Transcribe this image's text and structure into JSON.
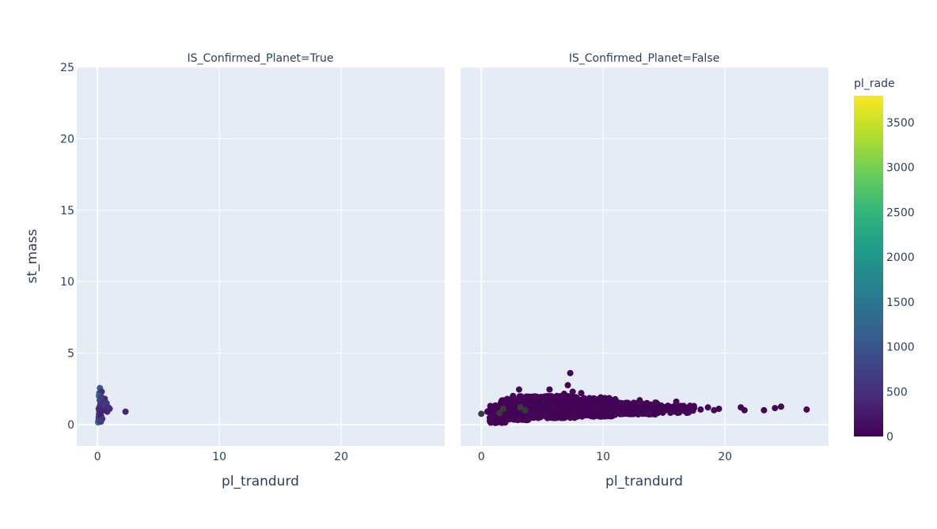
{
  "chart_data": {
    "type": "scatter",
    "colorscale": "Viridis",
    "colors": {
      "plot_bg": "#e5ecf6",
      "grid": "#ffffff",
      "text": "#2a3f5f",
      "dense_point": "#3a3a3a",
      "viridis": [
        "#440154",
        "#482878",
        "#3e4989",
        "#31688e",
        "#26828e",
        "#1f9e89",
        "#35b779",
        "#6ece58",
        "#b5de2b",
        "#fde725"
      ]
    },
    "shared_y_axis": true,
    "yaxis": {
      "title": "st_mass",
      "range": [
        -1.5,
        25
      ],
      "ticks": [
        0,
        5,
        10,
        15,
        20,
        25
      ]
    },
    "xaxis": {
      "title": "pl_trandurd",
      "range": [
        -1.7,
        28.5
      ],
      "ticks": [
        0,
        10,
        20
      ]
    },
    "colorbar": {
      "title": "pl_rade",
      "range": [
        0,
        3800
      ],
      "ticks": [
        0,
        500,
        1000,
        1500,
        2000,
        2500,
        3000,
        3500
      ]
    },
    "facets": [
      {
        "title": "IS_Confirmed_Planet=True",
        "points": [
          {
            "x": 0.05,
            "y": 0.15,
            "c": 1500
          },
          {
            "x": 0.08,
            "y": 0.3,
            "c": 900
          },
          {
            "x": 0.1,
            "y": 0.5,
            "c": 700
          },
          {
            "x": 0.12,
            "y": 0.7,
            "c": 600
          },
          {
            "x": 0.15,
            "y": 0.9,
            "c": 500
          },
          {
            "x": 0.1,
            "y": 1.1,
            "c": 450
          },
          {
            "x": 0.2,
            "y": 1.3,
            "c": 400
          },
          {
            "x": 0.25,
            "y": 1.5,
            "c": 600
          },
          {
            "x": 0.18,
            "y": 1.7,
            "c": 800
          },
          {
            "x": 0.22,
            "y": 1.9,
            "c": 900
          },
          {
            "x": 0.15,
            "y": 2.2,
            "c": 1000
          },
          {
            "x": 0.2,
            "y": 2.55,
            "c": 1100
          },
          {
            "x": 0.35,
            "y": 2.3,
            "c": 500
          },
          {
            "x": 0.4,
            "y": 1.6,
            "c": 600
          },
          {
            "x": 0.45,
            "y": 1.2,
            "c": 400
          },
          {
            "x": 0.5,
            "y": 1.4,
            "c": 500
          },
          {
            "x": 0.55,
            "y": 1.0,
            "c": 700
          },
          {
            "x": 0.6,
            "y": 1.8,
            "c": 450
          },
          {
            "x": 0.65,
            "y": 1.3,
            "c": 800
          },
          {
            "x": 0.7,
            "y": 1.1,
            "c": 500
          },
          {
            "x": 0.75,
            "y": 1.5,
            "c": 600
          },
          {
            "x": 0.8,
            "y": 0.9,
            "c": 400
          },
          {
            "x": 0.9,
            "y": 1.2,
            "c": 500
          },
          {
            "x": 1.0,
            "y": 1.1,
            "c": 450
          },
          {
            "x": 0.3,
            "y": 0.6,
            "c": 300
          },
          {
            "x": 0.28,
            "y": 0.2,
            "c": 700
          },
          {
            "x": 0.35,
            "y": 0.95,
            "c": 350
          },
          {
            "x": 0.4,
            "y": 0.4,
            "c": 600
          },
          {
            "x": 0.12,
            "y": 2.0,
            "c": 1300
          },
          {
            "x": 0.3,
            "y": 1.95,
            "c": 700
          },
          {
            "x": 2.3,
            "y": 0.9,
            "c": 400
          }
        ]
      },
      {
        "title": "IS_Confirmed_Planet=False",
        "points": [
          {
            "x": 0.0,
            "y": 0.75,
            "c": 0,
            "dense": true
          },
          {
            "x": 0.5,
            "y": 0.9,
            "c": 20
          },
          {
            "x": 1.5,
            "y": 0.8,
            "c": 0,
            "dense": true
          },
          {
            "x": 1.8,
            "y": 1.1,
            "c": 0,
            "dense": true
          },
          {
            "x": 3.2,
            "y": 1.2,
            "c": 0,
            "dense": true
          },
          {
            "x": 3.6,
            "y": 1.0,
            "c": 0,
            "dense": true
          },
          {
            "x": 0.9,
            "y": 0.2,
            "c": 30
          },
          {
            "x": 1.2,
            "y": 0.3,
            "c": 40
          },
          {
            "x": 2.0,
            "y": 0.35,
            "c": 20
          },
          {
            "x": 2.6,
            "y": 2.0,
            "c": 30
          },
          {
            "x": 3.1,
            "y": 2.45,
            "c": 40
          },
          {
            "x": 5.6,
            "y": 2.45,
            "c": 20
          },
          {
            "x": 6.2,
            "y": 2.0,
            "c": 30
          },
          {
            "x": 6.8,
            "y": 2.15,
            "c": 40
          },
          {
            "x": 7.1,
            "y": 2.75,
            "c": 20
          },
          {
            "x": 7.3,
            "y": 3.6,
            "c": 30
          },
          {
            "x": 7.5,
            "y": 2.3,
            "c": 40
          },
          {
            "x": 8.2,
            "y": 2.2,
            "c": 30
          },
          {
            "x": 9.8,
            "y": 1.9,
            "c": 20
          },
          {
            "x": 10.4,
            "y": 1.75,
            "c": 30
          },
          {
            "x": 13.0,
            "y": 1.7,
            "c": 40
          },
          {
            "x": 16.0,
            "y": 1.6,
            "c": 20
          },
          {
            "x": 16.6,
            "y": 1.3,
            "c": 30
          },
          {
            "x": 17.3,
            "y": 1.2,
            "c": 40
          },
          {
            "x": 18.0,
            "y": 1.05,
            "c": 20
          },
          {
            "x": 18.6,
            "y": 1.2,
            "c": 30
          },
          {
            "x": 19.1,
            "y": 1.0,
            "c": 40
          },
          {
            "x": 19.5,
            "y": 1.1,
            "c": 20
          },
          {
            "x": 21.3,
            "y": 1.2,
            "c": 30
          },
          {
            "x": 21.6,
            "y": 1.0,
            "c": 40
          },
          {
            "x": 23.2,
            "y": 1.0,
            "c": 20
          },
          {
            "x": 24.1,
            "y": 1.15,
            "c": 30
          },
          {
            "x": 24.6,
            "y": 1.25,
            "c": 40
          },
          {
            "x": 26.7,
            "y": 1.05,
            "c": 20
          },
          {
            "x": 14.5,
            "y": 0.9,
            "c": 30
          },
          {
            "x": 12.0,
            "y": 0.75,
            "c": 40
          },
          {
            "x": 11.0,
            "y": 1.4,
            "c": 20
          },
          {
            "x": 9.0,
            "y": 0.6,
            "c": 30
          },
          {
            "x": 6.0,
            "y": 0.5,
            "c": 40
          },
          {
            "x": 4.5,
            "y": 1.5,
            "c": 20
          },
          {
            "x": 4.0,
            "y": 0.45,
            "c": 30
          }
        ],
        "clusters": [
          {
            "x": [
              0.7,
              2.0
            ],
            "y": [
              0.1,
              1.35
            ],
            "n": 160
          },
          {
            "x": [
              1.5,
              4.0
            ],
            "y": [
              0.3,
              1.8
            ],
            "n": 260
          },
          {
            "x": [
              3.0,
              8.0
            ],
            "y": [
              0.45,
              2.0
            ],
            "n": 560
          },
          {
            "x": [
              6.5,
              11.0
            ],
            "y": [
              0.55,
              1.85
            ],
            "n": 420
          },
          {
            "x": [
              10.0,
              14.5
            ],
            "y": [
              0.7,
              1.55
            ],
            "n": 260
          },
          {
            "x": [
              14.0,
              17.5
            ],
            "y": [
              0.8,
              1.35
            ],
            "n": 90
          }
        ]
      }
    ]
  }
}
